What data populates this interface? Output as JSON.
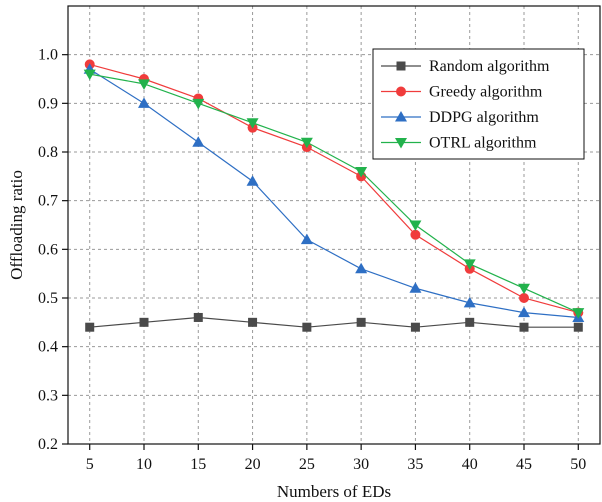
{
  "chart_data": {
    "type": "line",
    "xlabel": "Numbers of EDs",
    "ylabel": "Offloading ratio",
    "x": [
      5,
      10,
      15,
      20,
      25,
      30,
      35,
      40,
      45,
      50
    ],
    "xlim": [
      3,
      52
    ],
    "ylim": [
      0.2,
      1.1
    ],
    "y_ticks": [
      0.2,
      0.3,
      0.4,
      0.5,
      0.6,
      0.7,
      0.8,
      0.9,
      1.0
    ],
    "y_tick_labels": [
      "0.2",
      "0.3",
      "0.4",
      "0.5",
      "0.6",
      "0.7",
      "0.8",
      "0.9",
      "1.0"
    ],
    "x_tick_labels": [
      "5",
      "10",
      "15",
      "20",
      "25",
      "30",
      "35",
      "40",
      "45",
      "50"
    ],
    "grid": true,
    "legend_position": "top-right",
    "series": [
      {
        "name": "Random algorithm",
        "color": "#4a4a4a",
        "marker": "square",
        "values": [
          0.44,
          0.45,
          0.46,
          0.45,
          0.44,
          0.45,
          0.44,
          0.45,
          0.44,
          0.44
        ]
      },
      {
        "name": "Greedy algorithm",
        "color": "#f03c3c",
        "marker": "circle",
        "values": [
          0.98,
          0.95,
          0.91,
          0.85,
          0.81,
          0.75,
          0.63,
          0.56,
          0.5,
          0.47
        ]
      },
      {
        "name": "DDPG algorithm",
        "color": "#2e6fc4",
        "marker": "triangle-up",
        "values": [
          0.97,
          0.9,
          0.82,
          0.74,
          0.62,
          0.56,
          0.52,
          0.49,
          0.47,
          0.46
        ]
      },
      {
        "name": "OTRL algorithm",
        "color": "#22b24c",
        "marker": "triangle-down",
        "values": [
          0.96,
          0.94,
          0.9,
          0.86,
          0.82,
          0.76,
          0.65,
          0.57,
          0.52,
          0.47
        ]
      }
    ]
  }
}
